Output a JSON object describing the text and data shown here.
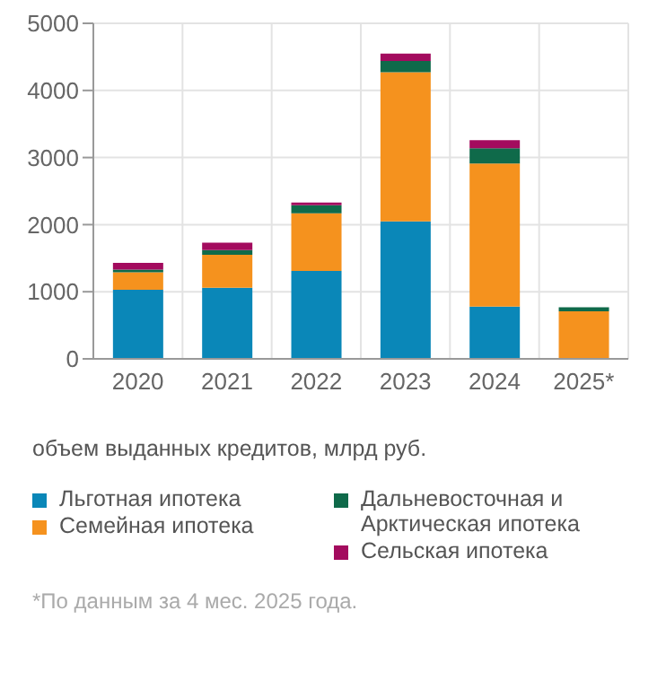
{
  "chart_data": {
    "type": "bar",
    "stacked": true,
    "categories": [
      "2020",
      "2021",
      "2022",
      "2023",
      "2024",
      "2025*"
    ],
    "series": [
      {
        "name": "Льготная ипотека",
        "color": "#0a87b8",
        "values": [
          1030,
          1060,
          1310,
          2050,
          780,
          0
        ]
      },
      {
        "name": "Семейная ипотека",
        "color": "#f5921e",
        "values": [
          260,
          490,
          860,
          2220,
          2130,
          710
        ]
      },
      {
        "name": "Дальневосточная и Арктическая ипотека",
        "color": "#0f6a4a",
        "values": [
          40,
          70,
          120,
          170,
          230,
          60
        ]
      },
      {
        "name": "Сельская ипотека",
        "color": "#a30b5e",
        "values": [
          100,
          110,
          40,
          110,
          120,
          0
        ]
      }
    ],
    "ylim": [
      0,
      5000
    ],
    "yticks": [
      0,
      1000,
      2000,
      3000,
      4000,
      5000
    ],
    "grid": true,
    "legend": "bottom",
    "annotations": [
      "объем выданных кредитов, млрд руб.",
      "*По данным за 4 мес. 2025 года."
    ]
  }
}
